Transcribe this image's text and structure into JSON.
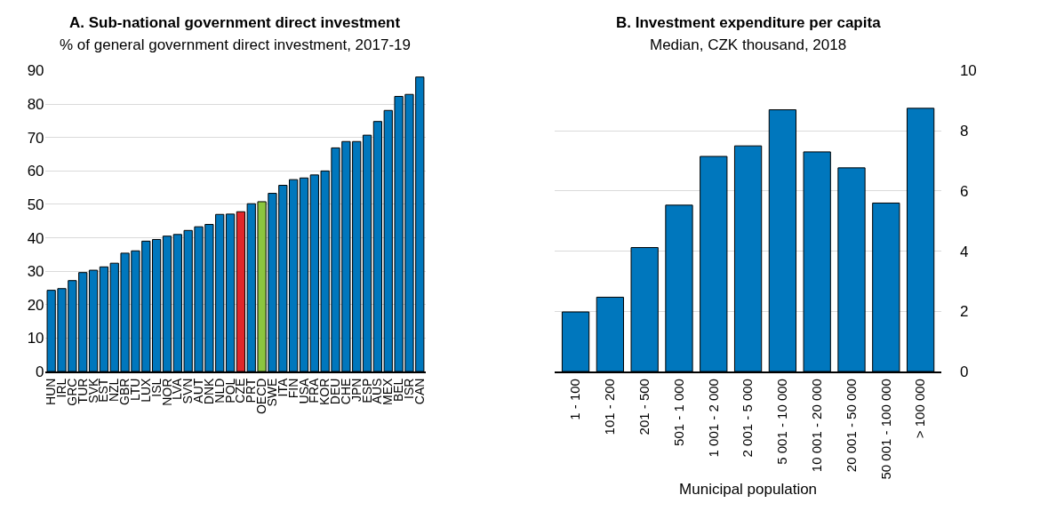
{
  "chart_data": [
    {
      "type": "bar",
      "title": "A. Sub-national government direct investment",
      "subtitle": "% of general government direct investment, 2017-19",
      "categories": [
        "HUN",
        "IRL",
        "GRC",
        "TUR",
        "SVK",
        "EST",
        "NZL",
        "GBR",
        "LTU",
        "LUX",
        "ISL",
        "NOR",
        "LVA",
        "SVN",
        "AUT",
        "DNK",
        "NLD",
        "POL",
        "CZE",
        "PRT",
        "OECD",
        "SWE",
        "ITA",
        "FIN",
        "USA",
        "FRA",
        "KOR",
        "DEU",
        "CHE",
        "JPN",
        "ESP",
        "AUS",
        "MEX",
        "BEL",
        "ISR",
        "CAN"
      ],
      "values": [
        24.3,
        24.8,
        27.2,
        29.6,
        30.3,
        31.3,
        32.4,
        35.4,
        36.1,
        39.0,
        39.5,
        40.5,
        41.0,
        42.2,
        43.3,
        44.0,
        47.0,
        47.1,
        47.8,
        50.2,
        50.8,
        53.3,
        55.7,
        57.4,
        57.9,
        58.8,
        60.0,
        66.9,
        68.8,
        68.8,
        70.7,
        74.8,
        78.1,
        82.3,
        82.9,
        88.1
      ],
      "colors": [
        "#0077bd",
        "#0077bd",
        "#0077bd",
        "#0077bd",
        "#0077bd",
        "#0077bd",
        "#0077bd",
        "#0077bd",
        "#0077bd",
        "#0077bd",
        "#0077bd",
        "#0077bd",
        "#0077bd",
        "#0077bd",
        "#0077bd",
        "#0077bd",
        "#0077bd",
        "#0077bd",
        "#e0262b",
        "#0077bd",
        "#8cc63f",
        "#0077bd",
        "#0077bd",
        "#0077bd",
        "#0077bd",
        "#0077bd",
        "#0077bd",
        "#0077bd",
        "#0077bd",
        "#0077bd",
        "#0077bd",
        "#0077bd",
        "#0077bd",
        "#0077bd",
        "#0077bd",
        "#0077bd"
      ],
      "ylim": [
        0,
        90
      ],
      "yticks": [
        0,
        10,
        20,
        30,
        40,
        50,
        60,
        70,
        80,
        90
      ],
      "grid": "y"
    },
    {
      "type": "bar",
      "title": "B. Investment expenditure per capita",
      "subtitle": "Median, CZK thousand, 2018",
      "xlabel": "Municipal population",
      "categories": [
        "1 - 100",
        "101 - 200",
        "201 - 500",
        "501 - 1 000",
        "1 001 - 2 000",
        "2 001 - 5 000",
        "5 001 - 10 000",
        "10 001 - 20 000",
        "20 001 - 50 000",
        "50 001 - 100 000",
        "> 100 000"
      ],
      "series": [
        {
          "color": "#0077bd",
          "axis": "y2",
          "values": [
            1.98,
            2.47,
            4.12,
            5.53,
            7.15,
            7.5,
            8.7,
            7.3,
            6.77,
            5.6,
            8.75
          ]
        }
      ],
      "y2lim": [
        0,
        10
      ],
      "y2ticks": [
        0,
        2,
        4,
        6,
        8,
        10
      ],
      "grid": "y"
    }
  ]
}
